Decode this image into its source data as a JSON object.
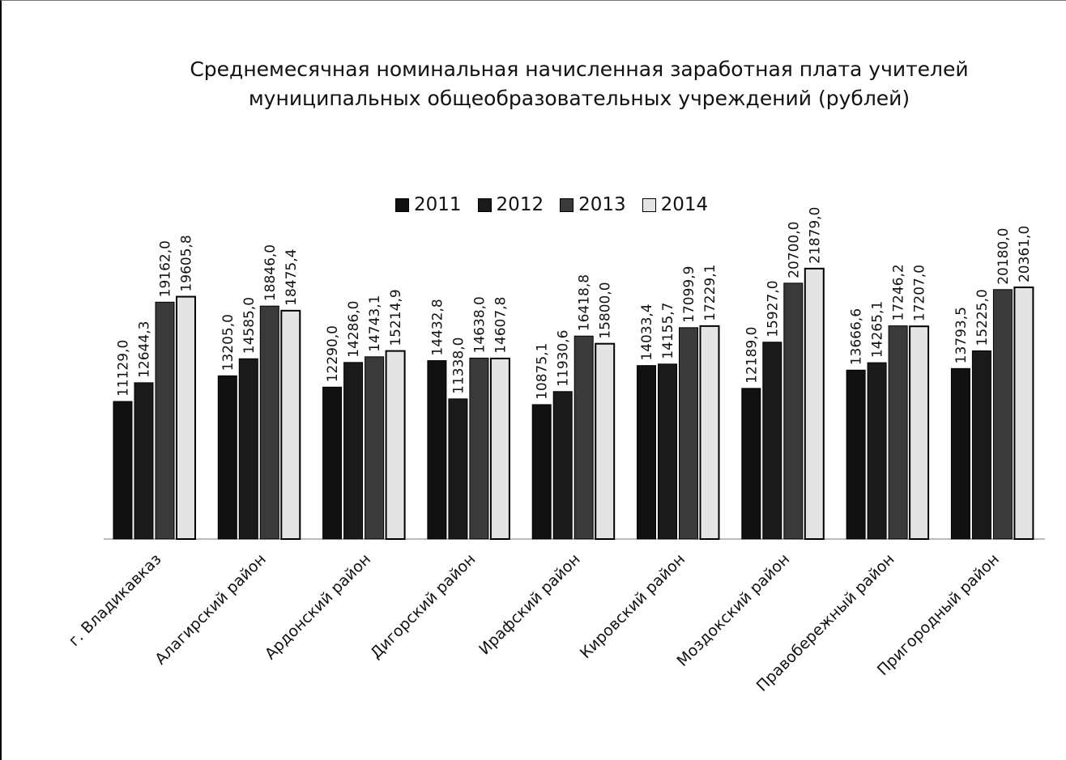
{
  "chart_data": {
    "type": "bar",
    "title": "Среднемесячная номинальная начисленная заработная плата учителей муниципальных  общеобразовательных учреждений (рублей)",
    "title_lines": [
      "Среднемесячная номинальная начисленная заработная плата учителей",
      "муниципальных  общеобразовательных учреждений (рублей)"
    ],
    "xlabel": "",
    "ylabel": "",
    "ylim": [
      0,
      22000
    ],
    "grid": false,
    "legend_position": "top",
    "categories": [
      "г. Владикавказ",
      "Алагирский район",
      "Ардонский район",
      "Дигорский район",
      "Ирафский район",
      "Кировский район",
      "Моздокский район",
      "Правобережный район",
      "Пригородный район"
    ],
    "series": [
      {
        "name": "2011",
        "color": "#111111",
        "values": [
          11129.0,
          13205.0,
          12290.0,
          14432.8,
          10875.1,
          14033.4,
          12189.0,
          13666.6,
          13793.5
        ],
        "labels": [
          "11129,0",
          "13205,0",
          "12290,0",
          "14432,8",
          "10875,1",
          "14033,4",
          "12189,0",
          "13666,6",
          "13793,5"
        ]
      },
      {
        "name": "2012",
        "color": "#1a1a1a",
        "values": [
          12644.3,
          14585.0,
          14286.0,
          11338.0,
          11930.6,
          14155.7,
          15927.0,
          14265.1,
          15225.0
        ],
        "labels": [
          "12644,3",
          "14585,0",
          "14286,0",
          "11338,0",
          "11930,6",
          "14155,7",
          "15927,0",
          "14265,1",
          "15225,0"
        ]
      },
      {
        "name": "2013",
        "color": "#3a3a3a",
        "values": [
          19162.0,
          18846.0,
          14743.1,
          14638.0,
          16418.8,
          17099.9,
          20700.0,
          17246.2,
          20180.0
        ],
        "labels": [
          "19162,0",
          "18846,0",
          "14743,1",
          "14638,0",
          "16418,8",
          "17099,9",
          "20700,0",
          "17246,2",
          "20180,0"
        ]
      },
      {
        "name": "2014",
        "color": "#e4e4e4",
        "values": [
          19605.8,
          18475.4,
          15214.9,
          14607.8,
          15800.0,
          17229.1,
          21879.0,
          17207.0,
          20361.0
        ],
        "labels": [
          "19605,8",
          "18475,4",
          "15214,9",
          "14607,8",
          "15800,0",
          "17229,1",
          "21879,0",
          "17207,0",
          "20361,0"
        ]
      }
    ]
  }
}
